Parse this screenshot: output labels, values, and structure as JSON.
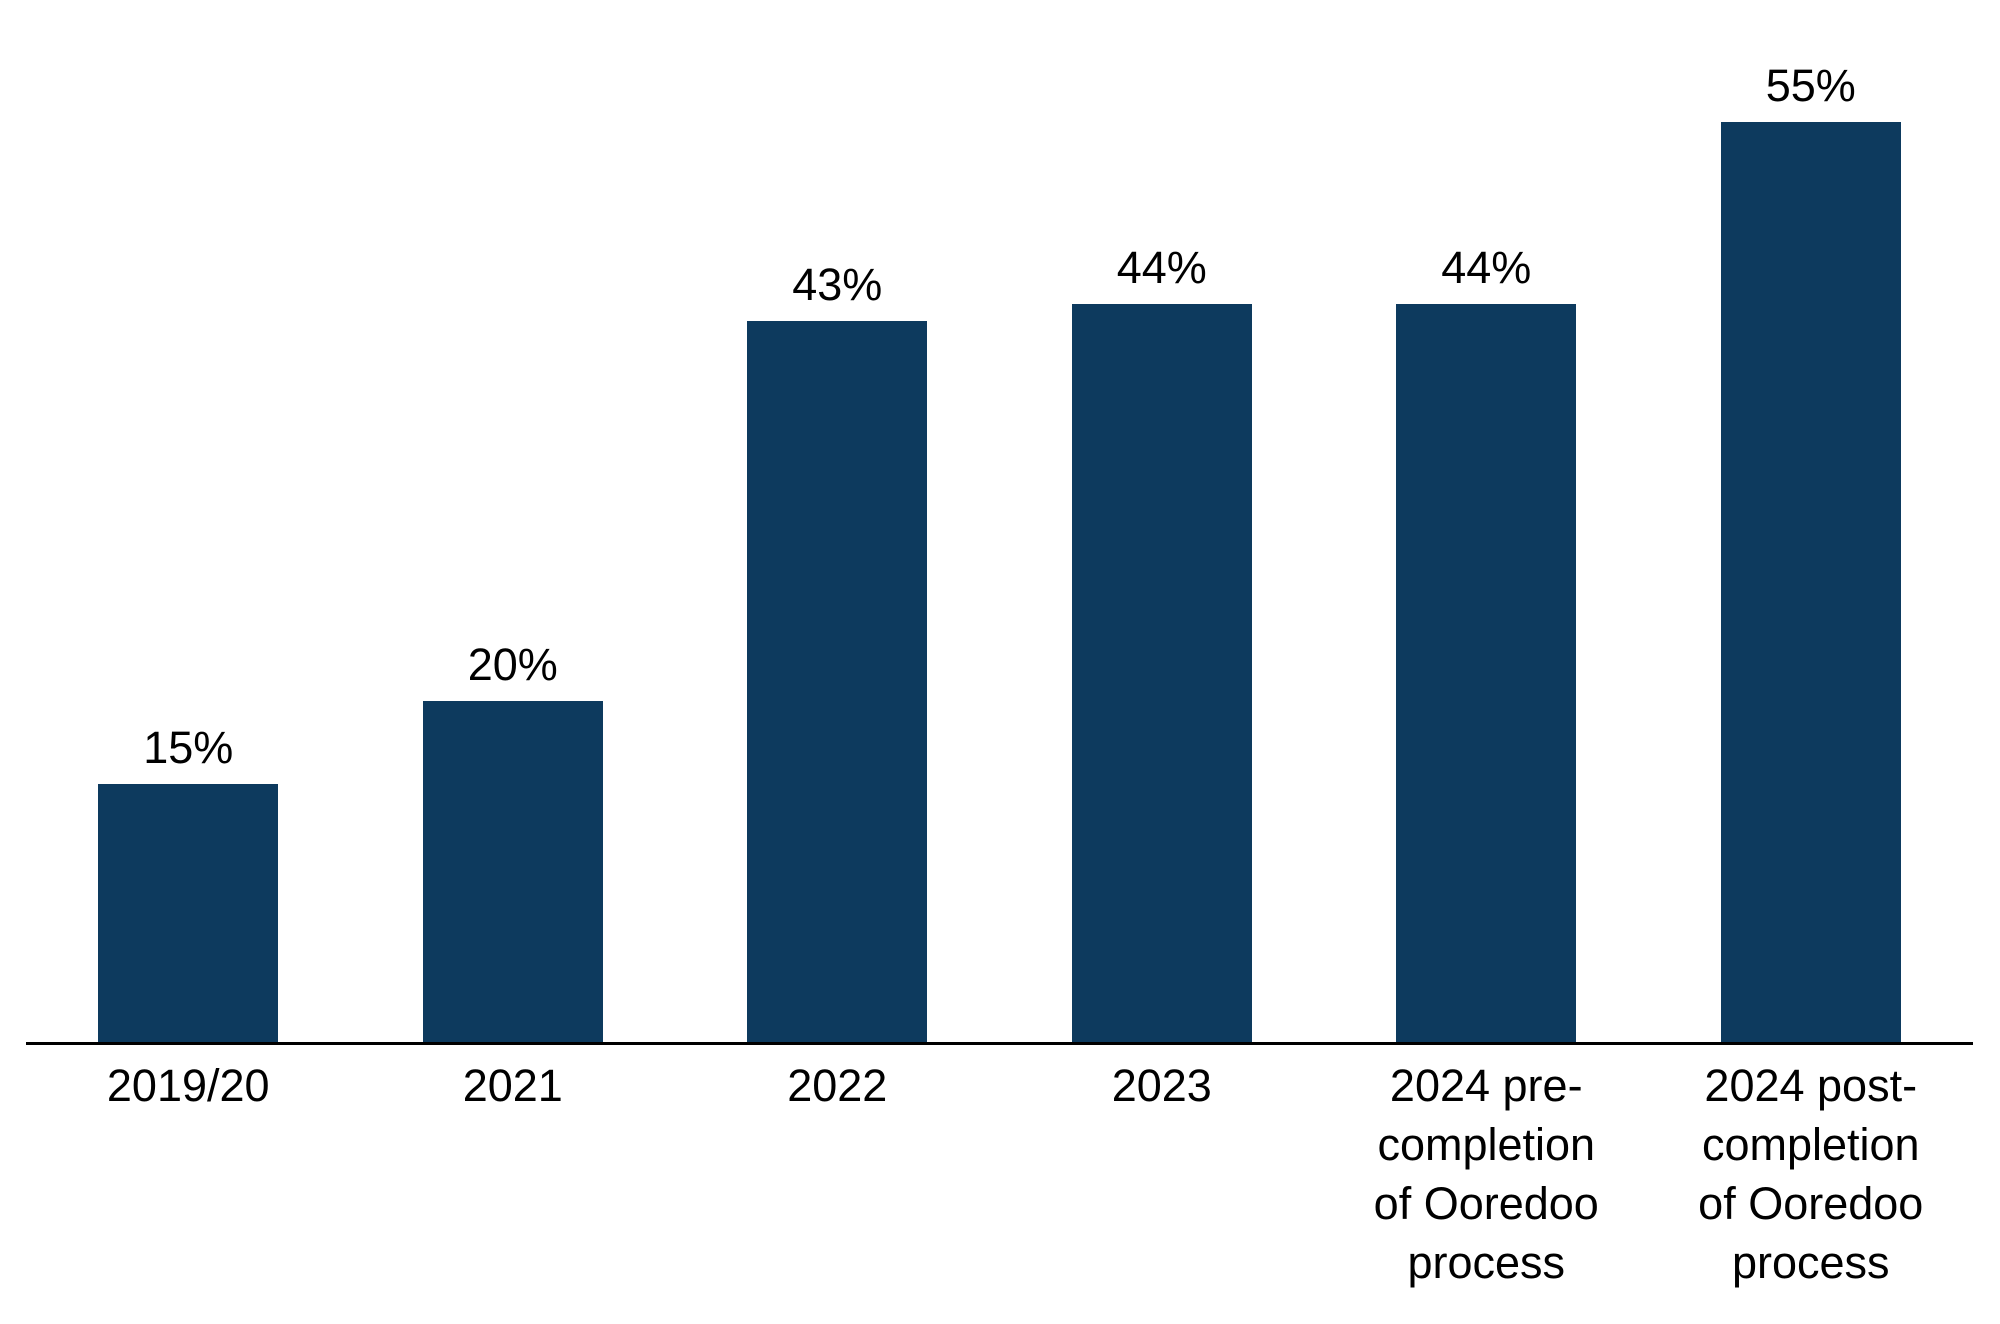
{
  "chart_data": {
    "type": "bar",
    "categories": [
      "2019/20",
      "2021",
      "2022",
      "2023",
      "2024 pre-\ncompletion\nof Ooredoo\nprocess",
      "2024 post-\ncompletion\nof Ooredoo\nprocess"
    ],
    "values": [
      15,
      20,
      43,
      44,
      44,
      55
    ],
    "data_labels": [
      "15%",
      "20%",
      "43%",
      "44%",
      "44%",
      "55%"
    ],
    "title": "",
    "xlabel": "",
    "ylabel": "",
    "ylim": [
      0,
      55
    ],
    "y_axis_visible": false,
    "x_axis_line_visible": true,
    "gridlines": false,
    "legend": "none",
    "data_label_position": "above-bars",
    "bar_color": "#0d3a5e",
    "axis_line_color": "#000000",
    "label_color": "#000000",
    "background_color": "#ffffff"
  }
}
